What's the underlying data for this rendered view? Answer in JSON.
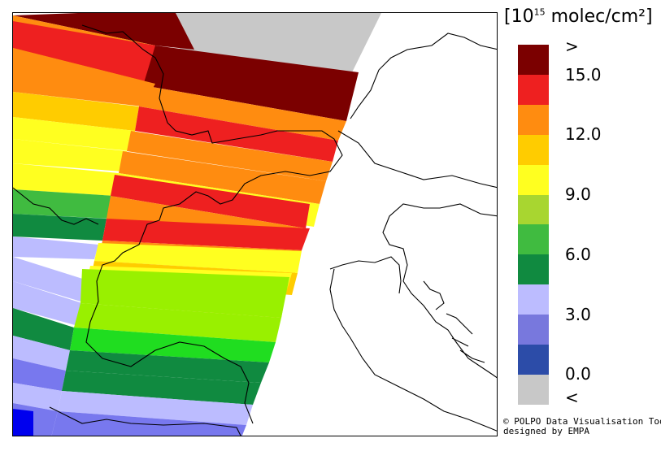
{
  "legend": {
    "title_prefix": "[10",
    "title_exp": "15",
    "title_suffix": " molec/cm²]",
    "colors": [
      "#7b0000",
      "#ee2020",
      "#ff8c10",
      "#ffcc00",
      "#ffff20",
      "#a8d630",
      "#40bb40",
      "#108a40",
      "#bcbcff",
      "#7878dd",
      "#2c4ca8",
      "#c8c8c8"
    ],
    "labels": [
      ">",
      "15.0",
      "12.0",
      "9.0",
      "6.0",
      "3.0",
      "0.0",
      "<"
    ]
  },
  "credit": {
    "line1": "© POLPO Data Visualisation Tool",
    "line2": "designed by EMPA"
  }
}
